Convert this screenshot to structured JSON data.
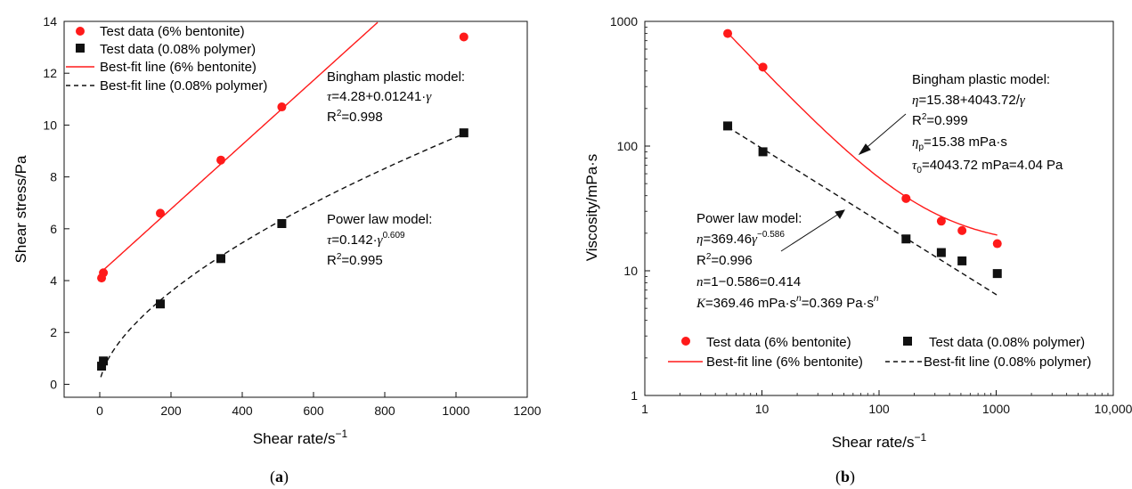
{
  "chart_data": [
    {
      "panel": "(a)",
      "type": "scatter",
      "xlabel": "Shear rate/s−1",
      "ylabel": "Shear stress/Pa",
      "xlim": [
        -100,
        1200
      ],
      "ylim": [
        -0.5,
        14
      ],
      "xticks": [
        0,
        200,
        400,
        600,
        800,
        1000,
        1200
      ],
      "yticks": [
        0,
        2,
        4,
        6,
        8,
        10,
        12,
        14
      ],
      "xscale": "linear",
      "yscale": "linear",
      "grid": false,
      "legend_position": "top-left",
      "series": [
        {
          "name": "Test data (6% bentonite)",
          "marker": "circle",
          "color": "#ff1a1a",
          "x": [
            5.1,
            10.2,
            170,
            340,
            511,
            1022
          ],
          "y": [
            4.1,
            4.3,
            6.6,
            8.65,
            10.7,
            13.4
          ]
        },
        {
          "name": "Test data (0.08% polymer)",
          "marker": "square",
          "color": "#111111",
          "x": [
            5.1,
            10.2,
            170,
            340,
            511,
            1022
          ],
          "y": [
            0.7,
            0.9,
            3.1,
            4.85,
            6.2,
            9.7
          ]
        }
      ],
      "fits": [
        {
          "name": "Best-fit line (6% bentonite)",
          "style": "solid",
          "color": "#ff1a1a",
          "model": "bingham",
          "a": 4.28,
          "b": 0.01241,
          "x_range": [
            0,
            780
          ]
        },
        {
          "name": "Best-fit line (0.08% polymer)",
          "style": "dashed",
          "color": "#111111",
          "model": "power",
          "k": 0.142,
          "n": 0.609,
          "x_range": [
            3,
            1022
          ]
        }
      ],
      "annotations": [
        {
          "id": "bingham",
          "lines": [
            "Bingham plastic model:",
            "τ=4.28+0.01241·γ",
            "R²=0.998"
          ]
        },
        {
          "id": "power",
          "lines": [
            "Power law model:",
            "τ=0.142·γ^0.609",
            "R²=0.995"
          ]
        }
      ]
    },
    {
      "panel": "(b)",
      "type": "scatter",
      "xlabel": "Shear rate/s−1",
      "ylabel": "Viscosity/mPa·s",
      "xlim": [
        1,
        10000
      ],
      "ylim": [
        1,
        1000
      ],
      "xticks": [
        1,
        10,
        100,
        1000,
        10000
      ],
      "xtick_labels": [
        "1",
        "10",
        "100",
        "1000",
        "10,000"
      ],
      "yticks": [
        1,
        10,
        100,
        1000
      ],
      "ytick_labels": [
        "1",
        "10",
        "100",
        "1000"
      ],
      "xscale": "log",
      "yscale": "log",
      "grid": false,
      "legend_position": "bottom",
      "series": [
        {
          "name": "Test data (6% bentonite)",
          "marker": "circle",
          "color": "#ff1a1a",
          "x": [
            5.1,
            10.2,
            170,
            340,
            511,
            1022
          ],
          "y": [
            800,
            430,
            38,
            25,
            21,
            16.5
          ]
        },
        {
          "name": "Test data (0.08% polymer)",
          "marker": "square",
          "color": "#111111",
          "x": [
            5.1,
            10.2,
            170,
            340,
            511,
            1022
          ],
          "y": [
            145,
            90,
            18,
            14,
            12,
            9.5
          ]
        }
      ],
      "fits": [
        {
          "name": "Best-fit line (6% bentonite)",
          "style": "solid",
          "color": "#ff1a1a",
          "model": "bingham",
          "a": 15.38,
          "b": 4043.72,
          "x_range": [
            5.1,
            1022
          ]
        },
        {
          "name": "Best-fit line (0.08% polymer)",
          "style": "dashed",
          "color": "#111111",
          "model": "power",
          "k": 369.46,
          "n": -0.586,
          "x_range": [
            5.1,
            1022
          ]
        }
      ],
      "annotations": [
        {
          "id": "bingham",
          "lines": [
            "Bingham plastic model:",
            "η=15.38+4043.72/γ",
            "R²=0.999",
            "ηp=15.38 mPa·s",
            "τ0=4043.72 mPa=4.04 Pa"
          ]
        },
        {
          "id": "power",
          "lines": [
            "Power law model:",
            "η=369.46γ^−0.586",
            "R²=0.996",
            "n=1−0.586=0.414",
            "K=369.46 mPa·s^n=0.369 Pa·s^n"
          ]
        }
      ]
    }
  ],
  "captions": {
    "a": "a",
    "b": "b"
  }
}
